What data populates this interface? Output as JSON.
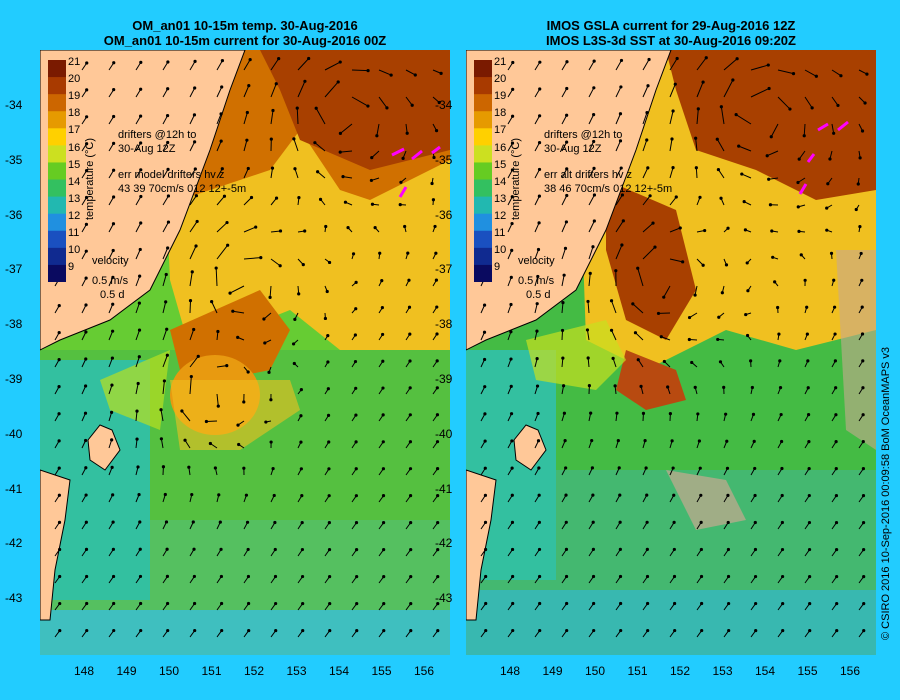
{
  "left": {
    "title_line1": "OM_an01 10-15m temp. 30-Aug-2016",
    "title_line2": "OM_an01 10-15m current for 30-Aug-2016 00Z",
    "drifters": "drifters @12h to\n30-Aug 12Z",
    "err": "err model drifters hv z\n43 39 70cm/s 012 12+-5m",
    "velocity": "velocity",
    "vel_scale": "0.5 m/s",
    "vel_time": "0.5 d"
  },
  "right": {
    "title_line1": "IMOS GSLA current for 29-Aug-2016 12Z",
    "title_line2": "IMOS L3S-3d SST at 30-Aug-2016 09:20Z",
    "drifters": "drifters @12h to\n30-Aug 12Z",
    "err": "err alt drifters hv z\n38 46 70cm/s 012 12+-5m",
    "velocity": "velocity",
    "vel_scale": "0.5 m/s",
    "vel_time": "0.5 d"
  },
  "colorbar": {
    "title": "temperature (°C)",
    "ticks": [
      "21",
      "20",
      "19",
      "18",
      "17",
      "16",
      "15",
      "14",
      "13",
      "12",
      "11",
      "10",
      "9"
    ],
    "colors": [
      "#7a1a00",
      "#a83a00",
      "#cc6600",
      "#e69a00",
      "#ffd000",
      "#cce020",
      "#66cc22",
      "#33c060",
      "#22b8b0",
      "#2090e0",
      "#1a50c0",
      "#102a90",
      "#0a0a60"
    ]
  },
  "lat_labels": [
    "-34",
    "-35",
    "-36",
    "-37",
    "-38",
    "-39",
    "-40",
    "-41",
    "-42",
    "-43"
  ],
  "lon_labels": [
    "148",
    "149",
    "150",
    "151",
    "152",
    "153",
    "154",
    "155",
    "156"
  ],
  "credit": "© CSIRO 2016  10-Sep-2016 00:09:58 BoM OceanMAPS v3",
  "colors": {
    "background": "#22ccff",
    "land": "#ffc898",
    "coast": "#000000",
    "drifter": "#ff00ff"
  }
}
